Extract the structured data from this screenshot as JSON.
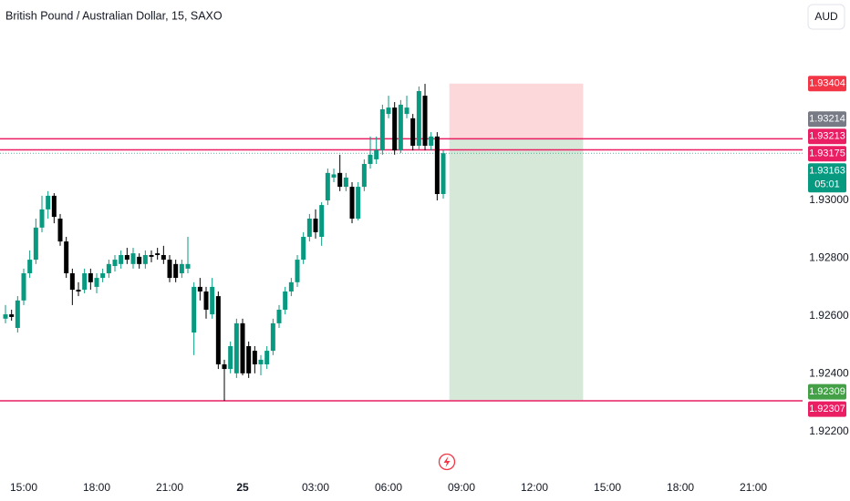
{
  "chart_data": {
    "type": "candlestick",
    "title": "British Pound / Australian Dollar, 15, SAXO",
    "currency_button": "AUD",
    "up_color": "#089981",
    "down_color": "#000000",
    "x": [
      "14:15",
      "14:30",
      "14:45",
      "15:00",
      "15:15",
      "15:30",
      "15:45",
      "16:00",
      "16:15",
      "16:30",
      "16:45",
      "17:00",
      "17:15",
      "17:30",
      "17:45",
      "18:00",
      "18:15",
      "18:30",
      "18:45",
      "19:00",
      "19:15",
      "19:30",
      "19:45",
      "20:00",
      "20:15",
      "20:30",
      "20:45",
      "21:00",
      "21:15",
      "21:30",
      "21:45",
      "22:00",
      "22:15",
      "22:30",
      "22:45",
      "23:00",
      "23:15",
      "23:30",
      "23:45",
      "00:00",
      "00:15",
      "00:30",
      "00:45",
      "01:00",
      "01:15",
      "01:30",
      "01:45",
      "02:00",
      "02:15",
      "02:30",
      "02:45",
      "03:00",
      "03:15",
      "03:30",
      "03:45",
      "04:00",
      "04:15",
      "04:30",
      "04:45",
      "05:00",
      "05:15",
      "05:30",
      "05:45",
      "06:00",
      "06:15",
      "06:30",
      "06:45",
      "07:00",
      "07:15",
      "07:30",
      "07:45",
      "08:00",
      "08:15"
    ],
    "open": [
      1.92591,
      1.92606,
      1.92559,
      1.92654,
      1.92748,
      1.92795,
      1.92906,
      1.92969,
      1.93016,
      1.92937,
      1.92858,
      1.92748,
      1.92691,
      1.92691,
      1.92748,
      1.92701,
      1.92732,
      1.92748,
      1.92773,
      1.9278,
      1.92811,
      1.9278,
      1.92805,
      1.9278,
      1.92811,
      1.92817,
      1.92811,
      1.92795,
      1.9278,
      1.92748,
      1.92764,
      1.92543,
      1.92701,
      1.92685,
      1.92606,
      1.92669,
      1.92433,
      1.92417,
      1.92402,
      1.92575,
      1.92496,
      1.9248,
      1.92433,
      1.92433,
      1.9248,
      1.92575,
      1.92622,
      1.92685,
      1.92717,
      1.92795,
      1.92874,
      1.92937,
      1.92874,
      1.93,
      1.93079,
      1.93095,
      1.93047,
      1.93047,
      1.92937,
      1.93047,
      1.93126,
      1.93142,
      1.93173,
      1.93299,
      1.93321,
      1.93173,
      1.93299,
      1.93284,
      1.93189,
      1.93362,
      1.93189,
      1.93221,
      1.93022
    ],
    "high": [
      1.92638,
      1.92622,
      1.92669,
      1.92764,
      1.92827,
      1.92937,
      1.93016,
      1.93032,
      1.93025,
      1.92953,
      1.92874,
      1.92764,
      1.92717,
      1.92764,
      1.92764,
      1.92748,
      1.92764,
      1.92795,
      1.92811,
      1.92827,
      1.92836,
      1.92836,
      1.92817,
      1.92827,
      1.92827,
      1.92836,
      1.92843,
      1.92811,
      1.92795,
      1.92795,
      1.92874,
      1.92717,
      1.92732,
      1.92701,
      1.92732,
      1.92685,
      1.92449,
      1.92512,
      1.92591,
      1.92591,
      1.92512,
      1.92496,
      1.92465,
      1.92496,
      1.92591,
      1.92638,
      1.92701,
      1.92732,
      1.92811,
      1.9289,
      1.92953,
      1.92969,
      1.92994,
      1.9311,
      1.9311,
      1.93158,
      1.93095,
      1.93063,
      1.93063,
      1.93142,
      1.93221,
      1.93221,
      1.93331,
      1.93362,
      1.9334,
      1.93347,
      1.93362,
      1.93299,
      1.93394,
      1.93403,
      1.93236,
      1.93236,
      1.93173
    ],
    "low": [
      1.92575,
      1.92584,
      1.92543,
      1.92638,
      1.92732,
      1.9278,
      1.9289,
      1.92937,
      1.92921,
      1.92843,
      1.92732,
      1.92638,
      1.92669,
      1.92679,
      1.92691,
      1.92679,
      1.92717,
      1.92732,
      1.92754,
      1.92764,
      1.9278,
      1.92764,
      1.92764,
      1.92764,
      1.92786,
      1.92795,
      1.9278,
      1.92717,
      1.92717,
      1.92732,
      1.92748,
      1.92465,
      1.92654,
      1.92591,
      1.92591,
      1.92417,
      1.92307,
      1.92402,
      1.92386,
      1.92395,
      1.92386,
      1.92402,
      1.92395,
      1.92417,
      1.92465,
      1.92559,
      1.92606,
      1.92669,
      1.92701,
      1.9278,
      1.92858,
      1.92868,
      1.92843,
      1.92984,
      1.93063,
      1.93032,
      1.93032,
      1.92921,
      1.92931,
      1.93032,
      1.9311,
      1.93126,
      1.93158,
      1.93284,
      1.93158,
      1.93164,
      1.93284,
      1.93173,
      1.93173,
      1.93173,
      1.93173,
      1.93,
      1.93006
    ],
    "close": [
      1.92606,
      1.92597,
      1.92654,
      1.92748,
      1.92795,
      1.92906,
      1.92969,
      1.93016,
      1.92943,
      1.92858,
      1.92748,
      1.92691,
      1.92685,
      1.92748,
      1.92717,
      1.92732,
      1.92748,
      1.9278,
      1.92795,
      1.92811,
      1.92795,
      1.92817,
      1.9278,
      1.92811,
      1.92805,
      1.92811,
      1.92795,
      1.92732,
      1.92732,
      1.9278,
      1.9278,
      1.92701,
      1.92685,
      1.92622,
      1.92701,
      1.92433,
      1.92417,
      1.92496,
      1.92575,
      1.92402,
      1.92402,
      1.92433,
      1.92449,
      1.9248,
      1.92575,
      1.92622,
      1.92685,
      1.92717,
      1.92795,
      1.92874,
      1.92937,
      1.9289,
      1.92984,
      1.93095,
      1.9309,
      1.93047,
      1.93079,
      1.92937,
      1.93047,
      1.93126,
      1.93158,
      1.93173,
      1.93315,
      1.93321,
      1.93173,
      1.93331,
      1.93321,
      1.93189,
      1.93378,
      1.93189,
      1.93221,
      1.93022,
      1.93163
    ],
    "ylim": [
      1.92055,
      1.93693
    ],
    "yticks": [
      {
        "value": 1.922,
        "label": "1.92200"
      },
      {
        "value": 1.924,
        "label": "1.92400"
      },
      {
        "value": 1.926,
        "label": "1.92600"
      },
      {
        "value": 1.928,
        "label": "1.92800"
      },
      {
        "value": 1.93,
        "label": "1.93000"
      }
    ],
    "xticks": [
      "15:00",
      "18:00",
      "21:00",
      {
        "value": "00:00",
        "label": "25"
      },
      "03:00",
      "06:00",
      "09:00",
      "12:00",
      "15:00",
      "18:00",
      "21:00"
    ],
    "hlines": [
      {
        "value": 1.93213,
        "color": "#e91e63"
      },
      {
        "value": 1.93175,
        "color": "#e91e63"
      },
      {
        "value": 1.92307,
        "color": "#e91e63"
      }
    ],
    "last_price_line": 1.93163,
    "position": {
      "start": "08:30",
      "end": "14:00",
      "stop": 1.93404,
      "entry": 1.93213,
      "target": 1.92309
    },
    "price_tags": [
      {
        "value": 1.93404,
        "color": "#f23645"
      },
      {
        "value": 1.93214,
        "color": "#787b86"
      },
      {
        "value": 1.93213,
        "color": "#e91e63"
      },
      {
        "value": 1.93175,
        "color": "#e91e63"
      },
      {
        "value": 1.93163,
        "color": "#089981",
        "countdown": "05:01"
      },
      {
        "value": 1.92309,
        "color": "#43a047"
      },
      {
        "value": 1.92307,
        "color": "#e91e63"
      }
    ]
  }
}
